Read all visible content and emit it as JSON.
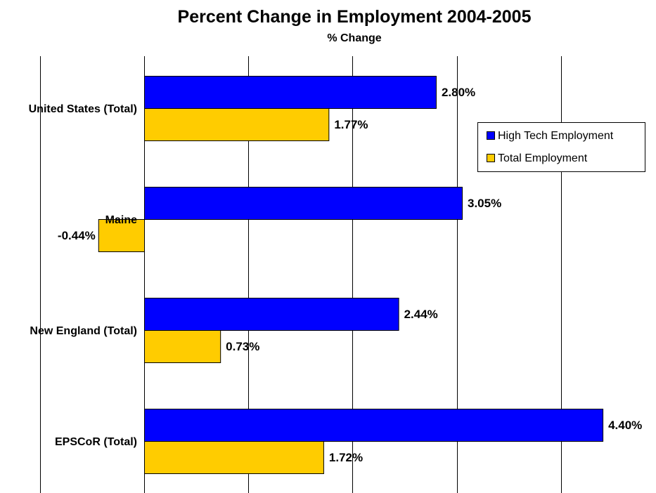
{
  "chart_data": {
    "type": "bar",
    "orientation": "horizontal",
    "title": "Percent Change in Employment 2004-2005",
    "subtitle": "% Change",
    "xlabel": "",
    "ylabel": "",
    "categories": [
      "United States (Total)",
      "Maine",
      "New England (Total)",
      "EPSCoR  (Total)"
    ],
    "series": [
      {
        "name": "High Tech Employment",
        "color": "#0000FF",
        "values": [
          2.8,
          3.05,
          2.44,
          4.4
        ],
        "labels": [
          "2.80%",
          "3.05%",
          "2.44%",
          "4.40%"
        ]
      },
      {
        "name": "Total Employment",
        "color": "#FFCC00",
        "values": [
          1.77,
          -0.44,
          0.73,
          1.72
        ],
        "labels": [
          "1.77%",
          "-0.44%",
          "0.73%",
          "1.72%"
        ]
      }
    ],
    "xlim": [
      -1,
      5
    ],
    "xticks": [
      -1,
      0,
      1,
      2,
      3,
      4,
      5
    ],
    "grid": true,
    "gridlines": "vertical",
    "tick_labels_shown": false,
    "legend_placement": "right"
  }
}
